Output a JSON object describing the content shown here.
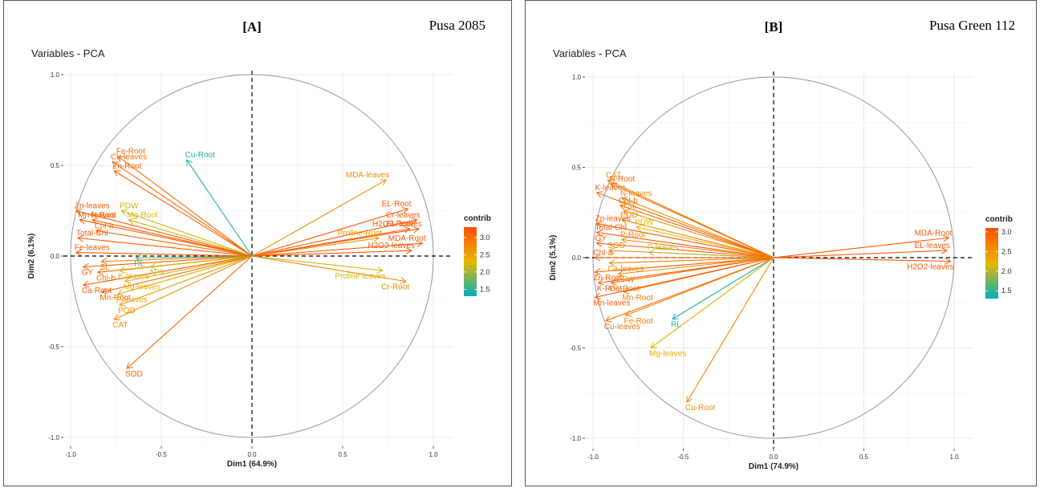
{
  "chart_data": [
    {
      "type": "scatter",
      "panel_label": "[A]",
      "cultivar": "Pusa 2085",
      "title": "Variables - PCA",
      "xlabel": "Dim1 (64.9%)",
      "ylabel": "Dim2 (6.1%)",
      "xlim": [
        -1.0,
        1.0
      ],
      "ylim": [
        -1.0,
        1.0
      ],
      "ticks": [
        "-1.0",
        "-0.5",
        "0.0",
        "0.5",
        "1.0"
      ],
      "legend_title": "contrib",
      "legend_ticks": [
        "3.0",
        "2.5",
        "2.0",
        "1.5"
      ],
      "legend_range": [
        1.3,
        3.3
      ],
      "variables": [
        {
          "name": "Fe-Root",
          "x": -0.74,
          "y": 0.55,
          "c": 3.0
        },
        {
          "name": "Cu-leaves",
          "x": -0.77,
          "y": 0.52,
          "c": 3.0
        },
        {
          "name": "Zn-Root",
          "x": -0.76,
          "y": 0.47,
          "c": 3.1
        },
        {
          "name": "Cu-Root",
          "x": -0.36,
          "y": 0.53,
          "c": 1.4
        },
        {
          "name": "Zn-leaves",
          "x": -0.97,
          "y": 0.25,
          "c": 3.2
        },
        {
          "name": "PDW",
          "x": -0.72,
          "y": 0.25,
          "c": 2.2
        },
        {
          "name": "Mn-leaves",
          "x": -0.95,
          "y": 0.2,
          "c": 3.2
        },
        {
          "name": "N-Root",
          "x": -0.88,
          "y": 0.2,
          "c": 3.1
        },
        {
          "name": "Mg-Root",
          "x": -0.68,
          "y": 0.2,
          "c": 2.2
        },
        {
          "name": "Chl-a",
          "x": -0.86,
          "y": 0.14,
          "c": 3.0
        },
        {
          "name": "Total-Chl",
          "x": -0.96,
          "y": 0.1,
          "c": 3.2
        },
        {
          "name": "Fe-leaves",
          "x": -0.97,
          "y": 0.02,
          "c": 3.2
        },
        {
          "name": "GY",
          "x": -0.93,
          "y": -0.06,
          "c": 3.1
        },
        {
          "name": "SL",
          "x": -0.83,
          "y": -0.03,
          "c": 2.9
        },
        {
          "name": "Chl-b",
          "x": -0.85,
          "y": -0.09,
          "c": 3.0
        },
        {
          "name": "K-leaves",
          "x": -0.73,
          "y": -0.08,
          "c": 2.4
        },
        {
          "name": "APX",
          "x": -0.56,
          "y": -0.06,
          "c": 2.2
        },
        {
          "name": "RL",
          "x": -0.64,
          "y": -0.01,
          "c": 1.6
        },
        {
          "name": "Ca-Root",
          "x": -0.93,
          "y": -0.16,
          "c": 3.2
        },
        {
          "name": "Mg-leaves",
          "x": -0.7,
          "y": -0.14,
          "c": 2.4
        },
        {
          "name": "P-leaves",
          "x": -0.74,
          "y": -0.21,
          "c": 2.4
        },
        {
          "name": "Mn-Root",
          "x": -0.83,
          "y": -0.2,
          "c": 3.0
        },
        {
          "name": "POD",
          "x": -0.73,
          "y": -0.27,
          "c": 2.6
        },
        {
          "name": "CAT",
          "x": -0.76,
          "y": -0.35,
          "c": 2.7
        },
        {
          "name": "SOD",
          "x": -0.69,
          "y": -0.62,
          "c": 3.1
        },
        {
          "name": "MDA-leaves",
          "x": 0.74,
          "y": 0.42,
          "c": 2.7
        },
        {
          "name": "EL-Root",
          "x": 0.86,
          "y": 0.26,
          "c": 3.2
        },
        {
          "name": "Cr-leaves",
          "x": 0.91,
          "y": 0.2,
          "c": 3.2
        },
        {
          "name": "H2O2-Root",
          "x": 0.87,
          "y": 0.15,
          "c": 3.2
        },
        {
          "name": "EL-leaves",
          "x": 0.92,
          "y": 0.15,
          "c": 3.2
        },
        {
          "name": "Proline-Root",
          "x": 0.7,
          "y": 0.1,
          "c": 2.6
        },
        {
          "name": "MDA-Root",
          "x": 0.94,
          "y": 0.07,
          "c": 3.2
        },
        {
          "name": "H2O2-leaves",
          "x": 0.88,
          "y": 0.03,
          "c": 3.2
        },
        {
          "name": "Proline-leaves",
          "x": 0.72,
          "y": -0.08,
          "c": 2.2
        },
        {
          "name": "Cr-Root",
          "x": 0.85,
          "y": -0.14,
          "c": 2.8
        }
      ]
    },
    {
      "type": "scatter",
      "panel_label": "[B]",
      "cultivar": "Pusa Green 112",
      "title": "Variables - PCA",
      "xlabel": "Dim1 (74.9%)",
      "ylabel": "Dim2 (5.1%)",
      "xlim": [
        -1.0,
        1.0
      ],
      "ylim": [
        -1.0,
        1.0
      ],
      "ticks": [
        "-1.0",
        "-0.5",
        "0.0",
        "0.5",
        "1.0"
      ],
      "legend_title": "contrib",
      "legend_ticks": [
        "3.0",
        "2.5",
        "2.0",
        "1.5"
      ],
      "legend_range": [
        1.3,
        3.1
      ],
      "variables": [
        {
          "name": "CAT",
          "x": -0.92,
          "y": 0.43,
          "c": 2.6
        },
        {
          "name": "N-Root",
          "x": -0.9,
          "y": 0.41,
          "c": 2.9
        },
        {
          "name": "N-leaves",
          "x": -0.84,
          "y": 0.33,
          "c": 2.6
        },
        {
          "name": "K-leaves",
          "x": -0.98,
          "y": 0.36,
          "c": 2.9
        },
        {
          "name": "Chl-b",
          "x": -0.85,
          "y": 0.29,
          "c": 2.9
        },
        {
          "name": "TSL",
          "x": -0.83,
          "y": 0.26,
          "c": 2.6
        },
        {
          "name": "POD",
          "x": -0.84,
          "y": 0.21,
          "c": 2.6
        },
        {
          "name": "PDW",
          "x": -0.76,
          "y": 0.17,
          "c": 2.2
        },
        {
          "name": "Zn-leaves",
          "x": -0.98,
          "y": 0.19,
          "c": 3.0
        },
        {
          "name": "Total-Chl",
          "x": -0.98,
          "y": 0.14,
          "c": 3.0
        },
        {
          "name": "P-Root",
          "x": -0.84,
          "y": 0.1,
          "c": 2.6
        },
        {
          "name": "GY",
          "x": -0.98,
          "y": 0.08,
          "c": 3.0
        },
        {
          "name": "SOD",
          "x": -0.91,
          "y": 0.04,
          "c": 2.6
        },
        {
          "name": "P-leaves",
          "x": -0.69,
          "y": 0.03,
          "c": 2.0
        },
        {
          "name": "Chl-a",
          "x": -0.99,
          "y": 0.0,
          "c": 3.0
        },
        {
          "name": "Ca-leaves",
          "x": -0.91,
          "y": -0.03,
          "c": 2.6
        },
        {
          "name": "Zn-Root",
          "x": -0.99,
          "y": -0.08,
          "c": 3.0
        },
        {
          "name": "PFW",
          "x": -0.86,
          "y": -0.09,
          "c": 2.6
        },
        {
          "name": "K-Root",
          "x": -0.97,
          "y": -0.14,
          "c": 3.0
        },
        {
          "name": "Ca-Root",
          "x": -0.9,
          "y": -0.14,
          "c": 2.8
        },
        {
          "name": "Mn-Root",
          "x": -0.83,
          "y": -0.19,
          "c": 2.7
        },
        {
          "name": "Mn-leaves",
          "x": -0.99,
          "y": -0.22,
          "c": 3.0
        },
        {
          "name": "Fe-Root",
          "x": -0.82,
          "y": -0.32,
          "c": 2.7
        },
        {
          "name": "Cu-leaves",
          "x": -0.93,
          "y": -0.35,
          "c": 2.8
        },
        {
          "name": "RL",
          "x": -0.56,
          "y": -0.34,
          "c": 1.4
        },
        {
          "name": "Mg-leaves",
          "x": -0.68,
          "y": -0.5,
          "c": 2.3
        },
        {
          "name": "Cu-Root",
          "x": -0.48,
          "y": -0.8,
          "c": 2.6
        },
        {
          "name": "MDA-Root",
          "x": 0.97,
          "y": 0.11,
          "c": 3.0
        },
        {
          "name": "EL-leaves",
          "x": 0.96,
          "y": 0.04,
          "c": 3.0
        },
        {
          "name": "H2O2-leaves",
          "x": 0.98,
          "y": -0.02,
          "c": 3.0
        }
      ]
    }
  ],
  "layout_hint": {
    "label_offsets_note": "none"
  }
}
